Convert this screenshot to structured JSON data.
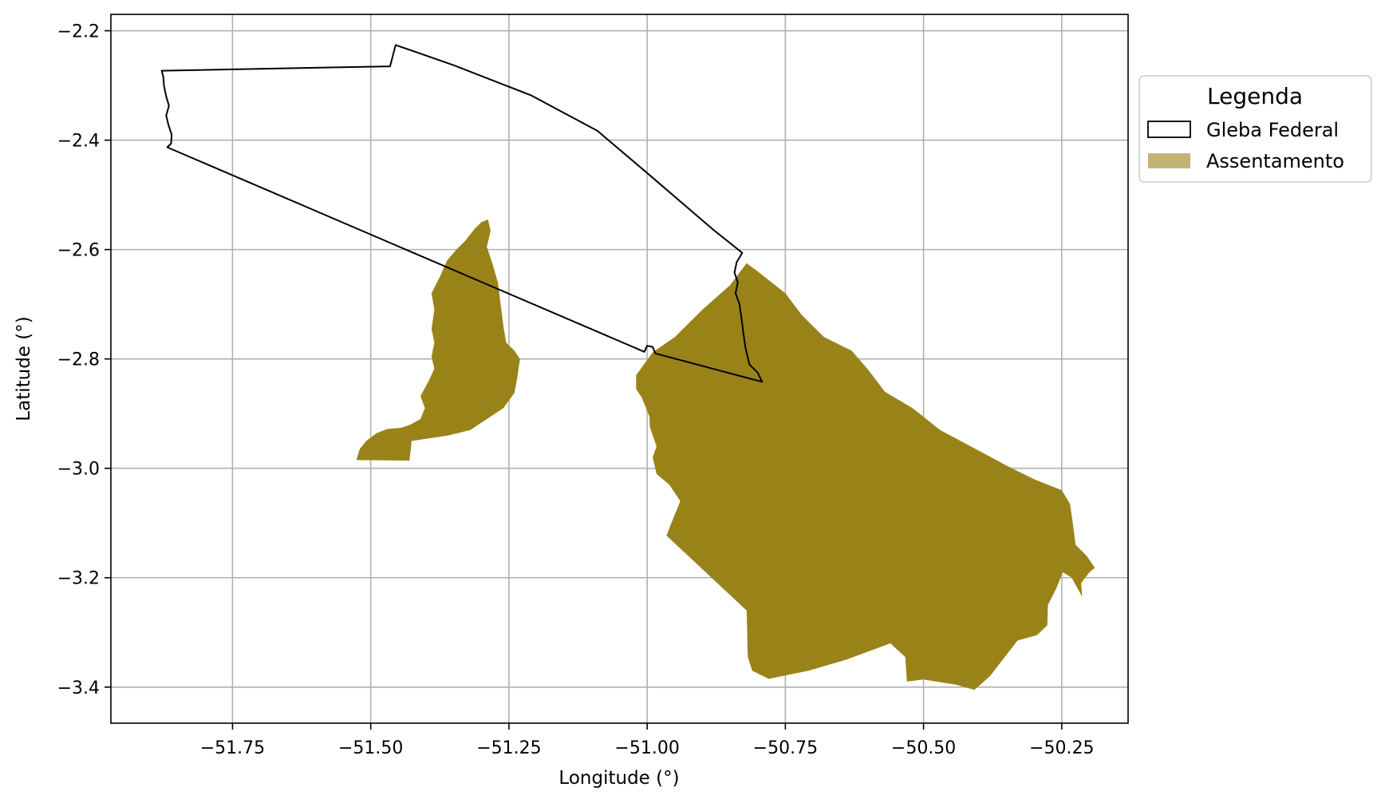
{
  "chart_data": {
    "type": "map",
    "xlabel": "Longitude (°)",
    "ylabel": "Latitude (°)",
    "xlim": [
      -51.97,
      -50.13
    ],
    "ylim": [
      -3.466,
      -2.17
    ],
    "x_ticks": [
      -51.75,
      -51.5,
      -51.25,
      -51.0,
      -50.75,
      -50.5,
      -50.25
    ],
    "x_tick_labels": [
      "−51.75",
      "−51.50",
      "−51.25",
      "−51.00",
      "−50.75",
      "−50.50",
      "−50.25"
    ],
    "y_ticks": [
      -2.2,
      -2.4,
      -2.6,
      -2.8,
      -3.0,
      -3.2,
      -3.4
    ],
    "y_tick_labels": [
      "−2.2",
      "−2.4",
      "−2.6",
      "−2.8",
      "−3.0",
      "−3.2",
      "−3.4"
    ],
    "grid": true,
    "legend": {
      "title": "Legenda",
      "position": "outside-right-top",
      "entries": [
        {
          "label": "Gleba Federal",
          "style": "outline",
          "color": "#000000"
        },
        {
          "label": "Assentamento",
          "style": "fill",
          "color": "#c2b574"
        }
      ]
    },
    "colors": {
      "gleba_outline": "#000000",
      "assentamento_fill": "#998319",
      "assentamento_legend": "#c2b574",
      "grid": "#b0b0b0"
    },
    "layers": {
      "gleba_federal": [
        [
          -51.878,
          -2.273
        ],
        [
          -51.465,
          -2.265
        ],
        [
          -51.455,
          -2.226
        ],
        [
          -51.35,
          -2.263
        ],
        [
          -51.21,
          -2.318
        ],
        [
          -51.09,
          -2.383
        ],
        [
          -51.0,
          -2.46
        ],
        [
          -50.88,
          -2.564
        ],
        [
          -50.828,
          -2.606
        ],
        [
          -50.832,
          -2.613
        ],
        [
          -50.838,
          -2.623
        ],
        [
          -50.842,
          -2.642
        ],
        [
          -50.836,
          -2.66
        ],
        [
          -50.84,
          -2.68
        ],
        [
          -50.833,
          -2.7
        ],
        [
          -50.83,
          -2.72
        ],
        [
          -50.826,
          -2.752
        ],
        [
          -50.822,
          -2.78
        ],
        [
          -50.815,
          -2.81
        ],
        [
          -50.8,
          -2.825
        ],
        [
          -50.792,
          -2.842
        ],
        [
          -50.985,
          -2.79
        ],
        [
          -50.99,
          -2.778
        ],
        [
          -51.0,
          -2.776
        ],
        [
          -51.005,
          -2.787
        ],
        [
          -51.868,
          -2.413
        ],
        [
          -51.861,
          -2.406
        ],
        [
          -51.86,
          -2.39
        ],
        [
          -51.866,
          -2.372
        ],
        [
          -51.87,
          -2.355
        ],
        [
          -51.865,
          -2.337
        ],
        [
          -51.87,
          -2.32
        ],
        [
          -51.874,
          -2.3
        ],
        [
          -51.875,
          -2.285
        ]
      ],
      "assentamento": [
        [
          [
            -51.526,
            -2.985
          ],
          [
            -51.52,
            -2.965
          ],
          [
            -51.508,
            -2.95
          ],
          [
            -51.49,
            -2.936
          ],
          [
            -51.47,
            -2.928
          ],
          [
            -51.445,
            -2.926
          ],
          [
            -51.428,
            -2.92
          ],
          [
            -51.41,
            -2.91
          ],
          [
            -51.402,
            -2.89
          ],
          [
            -51.41,
            -2.868
          ],
          [
            -51.395,
            -2.84
          ],
          [
            -51.385,
            -2.818
          ],
          [
            -51.39,
            -2.796
          ],
          [
            -51.385,
            -2.77
          ],
          [
            -51.39,
            -2.745
          ],
          [
            -51.385,
            -2.71
          ],
          [
            -51.39,
            -2.68
          ],
          [
            -51.375,
            -2.65
          ],
          [
            -51.362,
            -2.62
          ],
          [
            -51.345,
            -2.6
          ],
          [
            -51.33,
            -2.585
          ],
          [
            -51.312,
            -2.562
          ],
          [
            -51.3,
            -2.55
          ],
          [
            -51.288,
            -2.545
          ],
          [
            -51.283,
            -2.566
          ],
          [
            -51.29,
            -2.595
          ],
          [
            -51.28,
            -2.625
          ],
          [
            -51.27,
            -2.66
          ],
          [
            -51.265,
            -2.7
          ],
          [
            -51.26,
            -2.74
          ],
          [
            -51.255,
            -2.77
          ],
          [
            -51.24,
            -2.785
          ],
          [
            -51.23,
            -2.8
          ],
          [
            -51.235,
            -2.835
          ],
          [
            -51.24,
            -2.862
          ],
          [
            -51.26,
            -2.89
          ],
          [
            -51.32,
            -2.93
          ],
          [
            -51.36,
            -2.94
          ],
          [
            -51.426,
            -2.95
          ],
          [
            -51.43,
            -2.986
          ]
        ],
        [
          [
            -51.02,
            -2.83
          ],
          [
            -50.99,
            -2.788
          ],
          [
            -50.95,
            -2.76
          ],
          [
            -50.9,
            -2.71
          ],
          [
            -50.85,
            -2.665
          ],
          [
            -50.82,
            -2.625
          ],
          [
            -50.8,
            -2.64
          ],
          [
            -50.75,
            -2.68
          ],
          [
            -50.72,
            -2.72
          ],
          [
            -50.68,
            -2.76
          ],
          [
            -50.63,
            -2.785
          ],
          [
            -50.6,
            -2.82
          ],
          [
            -50.57,
            -2.86
          ],
          [
            -50.52,
            -2.89
          ],
          [
            -50.47,
            -2.93
          ],
          [
            -50.405,
            -2.965
          ],
          [
            -50.35,
            -2.995
          ],
          [
            -50.3,
            -3.02
          ],
          [
            -50.25,
            -3.04
          ],
          [
            -50.235,
            -3.065
          ],
          [
            -50.23,
            -3.1
          ],
          [
            -50.225,
            -3.14
          ],
          [
            -50.205,
            -3.16
          ],
          [
            -50.19,
            -3.182
          ],
          [
            -50.2,
            -3.19
          ],
          [
            -50.215,
            -3.21
          ],
          [
            -50.213,
            -3.235
          ],
          [
            -50.232,
            -3.2
          ],
          [
            -50.248,
            -3.19
          ],
          [
            -50.26,
            -3.22
          ],
          [
            -50.275,
            -3.25
          ],
          [
            -50.276,
            -3.287
          ],
          [
            -50.295,
            -3.305
          ],
          [
            -50.33,
            -3.315
          ],
          [
            -50.38,
            -3.38
          ],
          [
            -50.408,
            -3.405
          ],
          [
            -50.44,
            -3.396
          ],
          [
            -50.5,
            -3.386
          ],
          [
            -50.53,
            -3.39
          ],
          [
            -50.533,
            -3.345
          ],
          [
            -50.56,
            -3.32
          ],
          [
            -50.64,
            -3.35
          ],
          [
            -50.708,
            -3.37
          ],
          [
            -50.78,
            -3.385
          ],
          [
            -50.81,
            -3.37
          ],
          [
            -50.818,
            -3.345
          ],
          [
            -50.82,
            -3.26
          ],
          [
            -50.965,
            -3.123
          ],
          [
            -50.955,
            -3.097
          ],
          [
            -50.94,
            -3.06
          ],
          [
            -50.96,
            -3.03
          ],
          [
            -50.983,
            -3.01
          ],
          [
            -50.99,
            -2.98
          ],
          [
            -50.983,
            -2.96
          ],
          [
            -50.995,
            -2.925
          ],
          [
            -50.996,
            -2.905
          ],
          [
            -51.01,
            -2.87
          ],
          [
            -51.02,
            -2.855
          ]
        ]
      ]
    }
  }
}
